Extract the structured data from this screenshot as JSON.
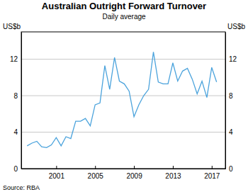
{
  "chart_data": {
    "type": "line",
    "title": "Australian Outright Forward Turnover",
    "subtitle": "Daily average",
    "y_label": "US$b",
    "y2_label": "US$b",
    "source": "Source: RBA",
    "color": "#4ba3dc",
    "x": [
      1998,
      1998.5,
      1999,
      1999.5,
      2000,
      2000.5,
      2001,
      2001.5,
      2002,
      2002.5,
      2003,
      2003.5,
      2004,
      2004.5,
      2005,
      2005.5,
      2006,
      2006.5,
      2007,
      2007.5,
      2008,
      2008.5,
      2009,
      2009.5,
      2010,
      2010.5,
      2011,
      2011.5,
      2012,
      2012.5,
      2013,
      2013.5,
      2014,
      2014.5,
      2015,
      2015.5,
      2016,
      2016.5,
      2017,
      2017.5
    ],
    "values": [
      2.5,
      2.8,
      3.0,
      2.4,
      2.3,
      2.6,
      3.4,
      2.5,
      3.5,
      3.3,
      5.2,
      5.2,
      5.5,
      4.7,
      7.0,
      7.2,
      11.3,
      8.7,
      12.2,
      9.6,
      9.3,
      8.5,
      5.7,
      7.0,
      8.0,
      8.7,
      12.8,
      9.5,
      9.3,
      9.3,
      11.6,
      9.6,
      10.7,
      11.0,
      9.8,
      8.2,
      9.6,
      7.8,
      11.1,
      9.5
    ],
    "xlim": [
      1997.4,
      2018.4
    ],
    "xticks": [
      2001,
      2005,
      2009,
      2013,
      2017
    ],
    "ylim": [
      0,
      15
    ],
    "yticks": [
      0,
      4,
      8,
      12
    ],
    "y2lim": [
      0,
      15
    ],
    "y2ticks": [
      0,
      4,
      8,
      12
    ],
    "grid": true
  }
}
